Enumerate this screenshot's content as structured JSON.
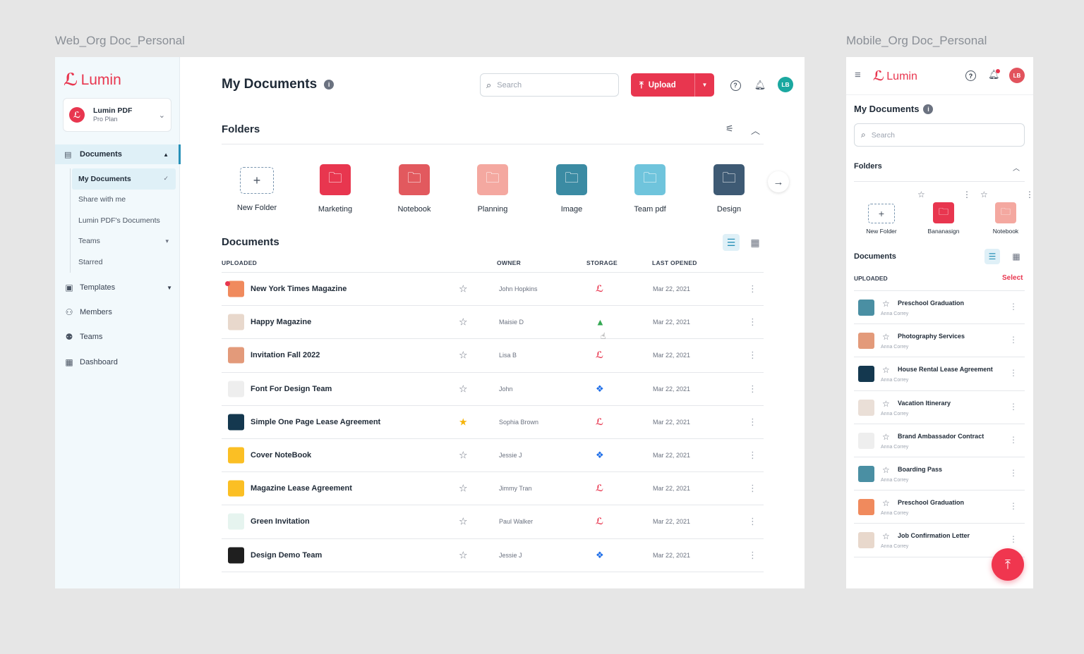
{
  "labels": {
    "web": "Web_Org Doc_Personal",
    "mobile": "Mobile_Org Doc_Personal"
  },
  "brand": {
    "name": "Lumin",
    "accent": "#e8364f"
  },
  "org": {
    "name": "Lumin PDF",
    "plan": "Pro Plan"
  },
  "sidebar": {
    "documents": "Documents",
    "sub": [
      "My Documents",
      "Share with me",
      "Lumin PDF's Documents",
      "Teams",
      "Starred"
    ],
    "items": [
      "Templates",
      "Members",
      "Teams",
      "Dashboard"
    ]
  },
  "header": {
    "title": "My Documents",
    "search_placeholder": "Search",
    "upload": "Upload",
    "avatar": "LB"
  },
  "folders": {
    "title": "Folders",
    "items": [
      {
        "label": "New Folder",
        "color": ""
      },
      {
        "label": "Marketing",
        "color": "#e8364f"
      },
      {
        "label": "Notebook",
        "color": "#e2595e"
      },
      {
        "label": "Planning",
        "color": "#f4a8a0"
      },
      {
        "label": "Image",
        "color": "#3b8ba3"
      },
      {
        "label": "Team pdf",
        "color": "#6fc4dc"
      },
      {
        "label": "Design",
        "color": "#3e5a74"
      }
    ]
  },
  "documents": {
    "title": "Documents",
    "columns": {
      "uploaded": "UPLOADED",
      "owner": "OWNER",
      "storage": "STORAGE",
      "last_opened": "LAST OPENED"
    },
    "rows": [
      {
        "name": "New York Times Magazine",
        "owner": "John Hopkins",
        "storage": "lumin",
        "opened": "Mar 22, 2021",
        "starred": false,
        "thumb": "#f08a5d"
      },
      {
        "name": "Happy Magazine",
        "owner": "Maisie D",
        "storage": "gdrive",
        "opened": "Mar 22, 2021",
        "starred": false,
        "thumb": "#e8d8cc"
      },
      {
        "name": "Invitation Fall 2022",
        "owner": "Lisa B",
        "storage": "lumin",
        "opened": "Mar 22, 2021",
        "starred": false,
        "thumb": "#e39a7a"
      },
      {
        "name": "Font For Design Team",
        "owner": "John",
        "storage": "dropbox",
        "opened": "Mar 22, 2021",
        "starred": false,
        "thumb": "#eeeeee"
      },
      {
        "name": "Simple One Page Lease Agreement",
        "owner": "Sophia Brown",
        "storage": "lumin",
        "opened": "Mar 22, 2021",
        "starred": true,
        "thumb": "#14384f"
      },
      {
        "name": "Cover NoteBook",
        "owner": "Jessie J",
        "storage": "dropbox",
        "opened": "Mar 22, 2021",
        "starred": false,
        "thumb": "#fbbf24"
      },
      {
        "name": "Magazine Lease Agreement",
        "owner": "Jimmy Tran",
        "storage": "lumin",
        "opened": "Mar 22, 2021",
        "starred": false,
        "thumb": "#fbbf24"
      },
      {
        "name": "Green Invitation",
        "owner": "Paul Walker",
        "storage": "lumin",
        "opened": "Mar 22, 2021",
        "starred": false,
        "thumb": "#e6f4ef"
      },
      {
        "name": "Design Demo Team",
        "owner": "Jessie J",
        "storage": "dropbox",
        "opened": "Mar 22, 2021",
        "starred": false,
        "thumb": "#1f1f1f"
      }
    ]
  },
  "mobile": {
    "title": "My Documents",
    "search_placeholder": "Search",
    "folders_title": "Folders",
    "folders": [
      {
        "label": "New Folder",
        "color": ""
      },
      {
        "label": "Bananasign",
        "color": "#e8364f"
      },
      {
        "label": "Notebook",
        "color": "#f4a8a0"
      }
    ],
    "documents_title": "Documents",
    "uploaded": "UPLOADED",
    "select": "Select",
    "avatar": "LB",
    "rows": [
      {
        "name": "Preschool Graduation",
        "owner": "Anna Correy",
        "thumb": "#4a8fa3"
      },
      {
        "name": "Photography Services",
        "owner": "Anna Correy",
        "thumb": "#e39a7a"
      },
      {
        "name": "House Rental Lease Agreement",
        "owner": "Anna Correy",
        "thumb": "#14384f"
      },
      {
        "name": "Vacation Itinerary",
        "owner": "Anna Correy",
        "thumb": "#eadfd7"
      },
      {
        "name": "Brand Ambassador Contract",
        "owner": "Anna Correy",
        "thumb": "#eeeeee"
      },
      {
        "name": "Boarding Pass",
        "owner": "Anna Correy",
        "thumb": "#4a8fa3"
      },
      {
        "name": "Preschool Graduation",
        "owner": "Anna Correy",
        "thumb": "#f08a5d"
      },
      {
        "name": "Job Confirmation Letter",
        "owner": "Anna Correy",
        "thumb": "#e8d8cc"
      }
    ]
  }
}
